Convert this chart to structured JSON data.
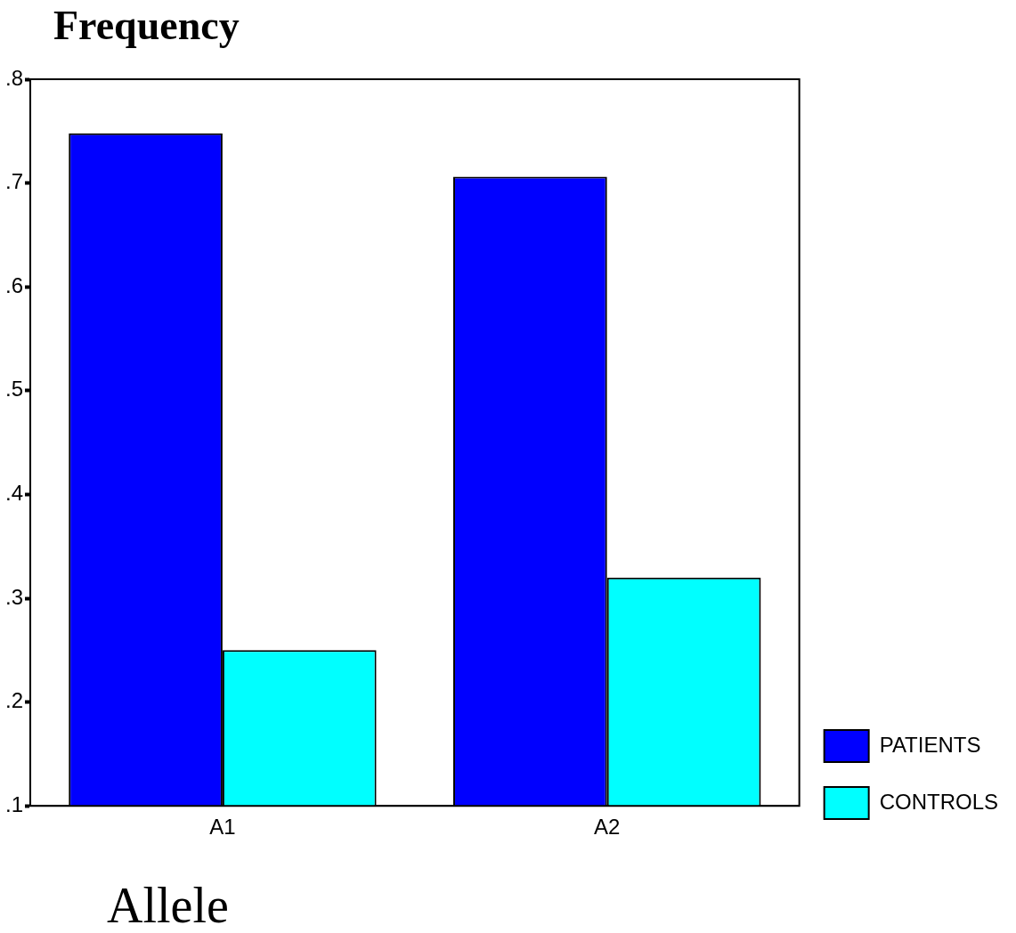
{
  "chart_data": {
    "type": "bar",
    "title": "Frequency",
    "xlabel": "Allele",
    "categories": [
      "A1",
      "A2"
    ],
    "series": [
      {
        "name": "PATIENTS",
        "color": "#0000ff",
        "values": [
          0.748,
          0.706
        ]
      },
      {
        "name": "CONTROLS",
        "color": "#00ffff",
        "values": [
          0.25,
          0.32
        ]
      }
    ],
    "ylim": [
      0.1,
      0.8
    ],
    "yticks": [
      {
        "value": 0.1,
        "label": ".1"
      },
      {
        "value": 0.2,
        "label": ".2"
      },
      {
        "value": 0.3,
        "label": ".3"
      },
      {
        "value": 0.4,
        "label": ".4"
      },
      {
        "value": 0.5,
        "label": ".5"
      },
      {
        "value": 0.6,
        "label": ".6"
      },
      {
        "value": 0.7,
        "label": ".7"
      },
      {
        "value": 0.8,
        "label": ".8"
      }
    ],
    "legend": "bottom right"
  }
}
